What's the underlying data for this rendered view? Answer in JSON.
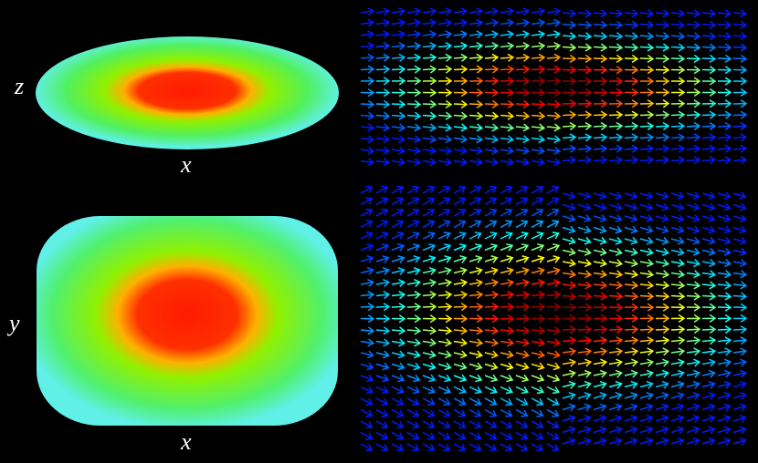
{
  "panels": [
    {
      "vertical_label": "z",
      "horizontal_label": "x"
    },
    {
      "vertical_label": "y",
      "horizontal_label": "x"
    }
  ]
}
